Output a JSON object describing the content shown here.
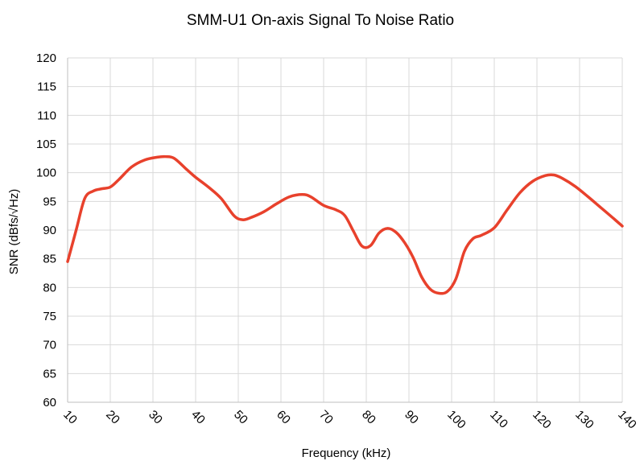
{
  "chart_data": {
    "type": "line",
    "title": "SMM-U1 On-axis Signal To Noise Ratio",
    "xlabel": "Frequency (kHz)",
    "ylabel": "SNR (dBfs/√Hz)",
    "xlim": [
      10,
      140
    ],
    "ylim": [
      60,
      120
    ],
    "xticks": [
      10,
      20,
      30,
      40,
      50,
      60,
      70,
      80,
      90,
      100,
      110,
      120,
      130,
      140
    ],
    "yticks": [
      60,
      65,
      70,
      75,
      80,
      85,
      90,
      95,
      100,
      105,
      110,
      115,
      120
    ],
    "grid": true,
    "series": [
      {
        "name": "SNR",
        "color": "#e8412c",
        "x": [
          10,
          12,
          14,
          16,
          18,
          20,
          22,
          25,
          28,
          31,
          33,
          35,
          38,
          40,
          43,
          46,
          49,
          51,
          53,
          56,
          59,
          62,
          65,
          67,
          70,
          73,
          75,
          77,
          79,
          81,
          83,
          85,
          87,
          89,
          91,
          93,
          95,
          97,
          99,
          101,
          103,
          105,
          107,
          110,
          113,
          116,
          119,
          122,
          124,
          126,
          129,
          132,
          135,
          138,
          140
        ],
        "y": [
          84.5,
          90,
          95.5,
          96.8,
          97.2,
          97.5,
          98.8,
          101,
          102.2,
          102.7,
          102.8,
          102.5,
          100.5,
          99.2,
          97.5,
          95.5,
          92.5,
          91.8,
          92.2,
          93.2,
          94.6,
          95.8,
          96.2,
          95.8,
          94.3,
          93.5,
          92.5,
          89.8,
          87.2,
          87.3,
          89.5,
          90.3,
          89.6,
          87.8,
          85.2,
          81.8,
          79.7,
          79.0,
          79.3,
          81.5,
          86.3,
          88.5,
          89.1,
          90.4,
          93.5,
          96.5,
          98.5,
          99.5,
          99.6,
          99.0,
          97.6,
          95.8,
          93.9,
          92.0,
          90.7
        ]
      }
    ]
  }
}
